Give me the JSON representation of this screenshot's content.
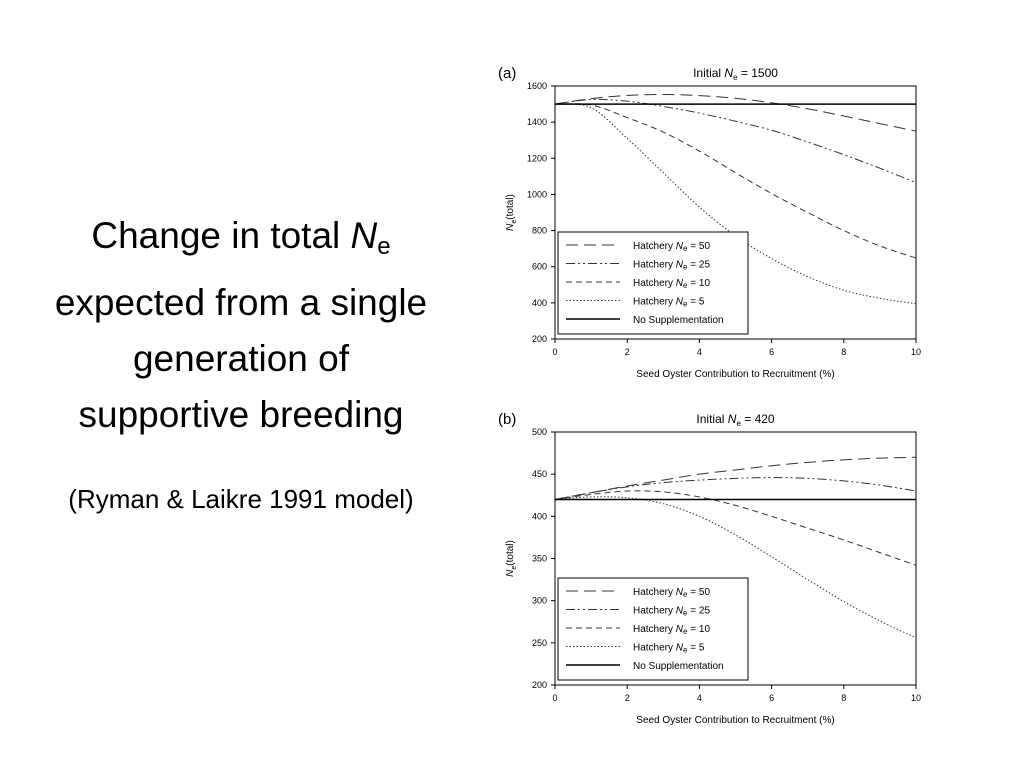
{
  "slide": {
    "title_line1": "Change in total",
    "title_symbol": "N",
    "title_symbol_sub": "e",
    "title_line2": "expected from a single",
    "title_line3": "generation of",
    "title_line4": "supportive breeding",
    "subtitle": "(Ryman & Laikre 1991 model)"
  },
  "chart_data": [
    {
      "panel_label": "(a)",
      "type": "line",
      "title_prefix": "Initial ",
      "title_symbol": "N",
      "title_sub": "e",
      "title_suffix": " = 1500",
      "xlabel": "Seed Oyster Contribution to Recruitment (%)",
      "ylabel_symbol": "N",
      "ylabel_sub": "e",
      "ylabel_suffix": "(total)",
      "xlim": [
        0,
        10
      ],
      "ylim": [
        200,
        1600
      ],
      "xticks": [
        0,
        2,
        4,
        6,
        8,
        10
      ],
      "yticks": [
        200,
        400,
        600,
        800,
        1000,
        1200,
        1400,
        1600
      ],
      "legend_position": "bottom-left",
      "x": [
        0,
        1,
        2,
        3,
        4,
        5,
        6,
        7,
        8,
        9,
        10
      ],
      "series": [
        {
          "name_prefix": "Hatchery ",
          "name_symbol": "N",
          "name_sub": "e",
          "name_suffix": " = 50",
          "style": "long-dash",
          "values": [
            1500,
            1530,
            1548,
            1553,
            1547,
            1532,
            1507,
            1474,
            1434,
            1392,
            1350
          ]
        },
        {
          "name_prefix": "Hatchery ",
          "name_symbol": "N",
          "name_sub": "e",
          "name_suffix": " = 25",
          "style": "dash-dot-dot",
          "values": [
            1500,
            1525,
            1516,
            1487,
            1450,
            1405,
            1355,
            1290,
            1220,
            1145,
            1065
          ]
        },
        {
          "name_prefix": "Hatchery ",
          "name_symbol": "N",
          "name_sub": "e",
          "name_suffix": " = 10",
          "style": "short-dash",
          "values": [
            1500,
            1495,
            1425,
            1345,
            1240,
            1120,
            1005,
            900,
            800,
            715,
            648
          ]
        },
        {
          "name_prefix": "Hatchery ",
          "name_symbol": "N",
          "name_sub": "e",
          "name_suffix": " = 5",
          "style": "dotted",
          "values": [
            1500,
            1480,
            1310,
            1120,
            930,
            770,
            645,
            545,
            470,
            425,
            395
          ]
        },
        {
          "name": "No Supplementation",
          "style": "solid",
          "values": [
            1500,
            1500,
            1500,
            1500,
            1500,
            1500,
            1500,
            1500,
            1500,
            1500,
            1500
          ]
        }
      ]
    },
    {
      "panel_label": "(b)",
      "type": "line",
      "title_prefix": "Initial ",
      "title_symbol": "N",
      "title_sub": "e",
      "title_suffix": " = 420",
      "xlabel": "Seed Oyster Contribution to Recruitment (%)",
      "ylabel_symbol": "N",
      "ylabel_sub": "e",
      "ylabel_suffix": "(total)",
      "xlim": [
        0,
        10
      ],
      "ylim": [
        200,
        500
      ],
      "xticks": [
        0,
        2,
        4,
        6,
        8,
        10
      ],
      "yticks": [
        200,
        250,
        300,
        350,
        400,
        450,
        500
      ],
      "legend_position": "bottom-left",
      "x": [
        0,
        1,
        2,
        3,
        4,
        5,
        6,
        7,
        8,
        9,
        10
      ],
      "series": [
        {
          "name_prefix": "Hatchery ",
          "name_symbol": "N",
          "name_sub": "e",
          "name_suffix": " = 50",
          "style": "long-dash",
          "values": [
            420,
            428,
            436,
            443,
            450,
            455,
            460,
            464,
            467,
            469,
            470
          ]
        },
        {
          "name_prefix": "Hatchery ",
          "name_symbol": "N",
          "name_sub": "e",
          "name_suffix": " = 25",
          "style": "dash-dot-dot",
          "values": [
            420,
            428,
            435,
            440,
            443,
            445,
            446,
            445,
            442,
            437,
            430
          ]
        },
        {
          "name_prefix": "Hatchery ",
          "name_symbol": "N",
          "name_sub": "e",
          "name_suffix": " = 10",
          "style": "short-dash",
          "values": [
            420,
            426,
            430,
            429,
            423,
            413,
            400,
            386,
            372,
            357,
            342
          ]
        },
        {
          "name_prefix": "Hatchery ",
          "name_symbol": "N",
          "name_sub": "e",
          "name_suffix": " = 5",
          "style": "dotted",
          "values": [
            420,
            423,
            422,
            415,
            400,
            378,
            352,
            325,
            299,
            276,
            256
          ]
        },
        {
          "name": "No Supplementation",
          "style": "solid",
          "values": [
            420,
            420,
            420,
            420,
            420,
            420,
            420,
            420,
            420,
            420,
            420
          ]
        }
      ]
    }
  ]
}
